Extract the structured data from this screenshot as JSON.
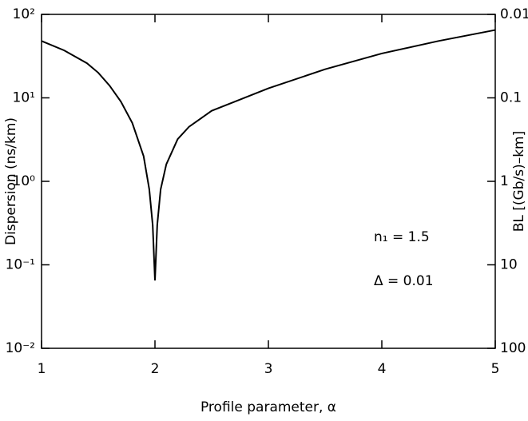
{
  "chart_data": {
    "type": "line",
    "xlabel": "Profile parameter, α",
    "ylabel": "Dispersion (ns/km)",
    "y2label": "BL [(Gb/s)–km]",
    "annotations": [
      "n₁ = 1.5",
      "Δ = 0.01"
    ],
    "xlim": [
      1,
      5
    ],
    "xticks": [
      1,
      2,
      3,
      4,
      5
    ],
    "ylim": [
      0.01,
      100
    ],
    "ylog": true,
    "yticks": [
      {
        "value": 0.01,
        "label": "10⁻²"
      },
      {
        "value": 0.1,
        "label": "10⁻¹"
      },
      {
        "value": 1,
        "label": "10⁰"
      },
      {
        "value": 10,
        "label": "10¹"
      },
      {
        "value": 100,
        "label": "10²"
      }
    ],
    "y2lim": [
      100,
      0.01
    ],
    "y2log": true,
    "y2ticks": [
      0.01,
      0.1,
      1,
      10,
      100
    ],
    "grid": false,
    "series": [
      {
        "name": null,
        "color": "#000000",
        "x": [
          1,
          1.2,
          1.4,
          1.5,
          1.6,
          1.7,
          1.8,
          1.9,
          1.95,
          1.98,
          2,
          2.02,
          2.05,
          2.1,
          2.2,
          2.3,
          2.5,
          3,
          3.5,
          4,
          4.5,
          5
        ],
        "values": [
          48,
          37,
          26,
          20,
          14,
          9,
          5,
          2,
          0.8,
          0.3,
          0.065,
          0.3,
          0.8,
          1.6,
          3.2,
          4.5,
          7,
          13,
          22,
          34,
          48,
          65
        ]
      }
    ]
  }
}
